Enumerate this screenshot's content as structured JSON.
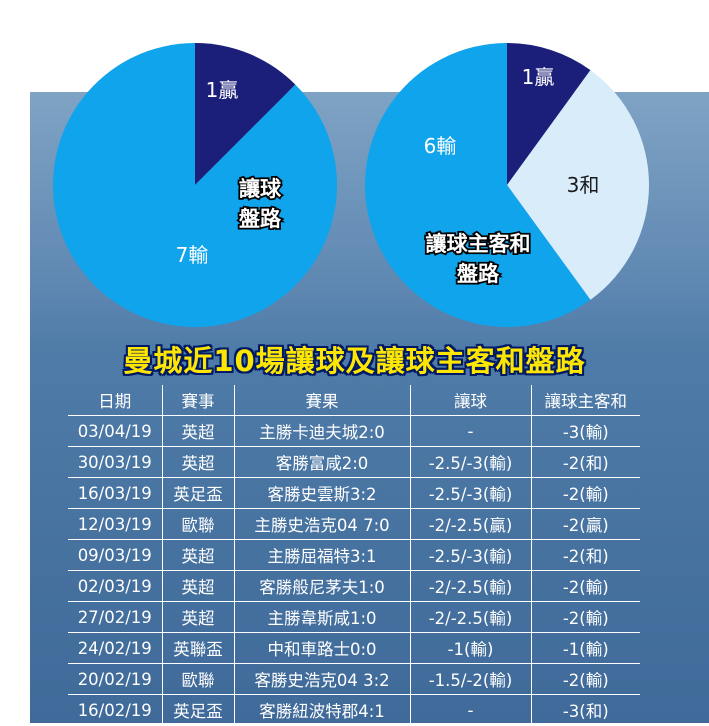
{
  "chart_data": [
    {
      "type": "pie",
      "title": "讓球盤路",
      "slices": [
        {
          "label": "1贏",
          "value": 1,
          "color": "#1c1f7a"
        },
        {
          "label": "7輸",
          "value": 7,
          "color": "#0fa4ec"
        }
      ]
    },
    {
      "type": "pie",
      "title": "讓球主客和盤路",
      "slices": [
        {
          "label": "1贏",
          "value": 1,
          "color": "#1c1f7a"
        },
        {
          "label": "3和",
          "value": 3,
          "color": "#d8ecfa"
        },
        {
          "label": "6輸",
          "value": 6,
          "color": "#0fa4ec"
        }
      ]
    },
    {
      "type": "table",
      "title": "曼城近10場讓球及讓球主客和盤路",
      "columns": [
        "日期",
        "賽事",
        "賽果",
        "讓球",
        "讓球主客和"
      ],
      "rows": [
        [
          "03/04/19",
          "英超",
          "主勝卡迪夫城2:0",
          "-",
          "-3(輸)"
        ],
        [
          "30/03/19",
          "英超",
          "客勝富咸2:0",
          "-2.5/-3(輸)",
          "-2(和)"
        ],
        [
          "16/03/19",
          "英足盃",
          "客勝史雲斯3:2",
          "-2.5/-3(輸)",
          "-2(輸)"
        ],
        [
          "12/03/19",
          "歐聯",
          "主勝史浩克04 7:0",
          "-2/-2.5(贏)",
          "-2(贏)"
        ],
        [
          "09/03/19",
          "英超",
          "主勝屈福特3:1",
          "-2.5/-3(輸)",
          "-2(和)"
        ],
        [
          "02/03/19",
          "英超",
          "客勝般尼茅夫1:0",
          "-2/-2.5(輸)",
          "-2(輸)"
        ],
        [
          "27/02/19",
          "英超",
          "主勝韋斯咸1:0",
          "-2/-2.5(輸)",
          "-2(輸)"
        ],
        [
          "24/02/19",
          "英聯盃",
          "中和車路士0:0",
          "-1(輸)",
          "-1(輸)"
        ],
        [
          "20/02/19",
          "歐聯",
          "客勝史浩克04 3:2",
          "-1.5/-2(輸)",
          "-2(輸)"
        ],
        [
          "16/02/19",
          "英足盃",
          "客勝紐波特郡4:1",
          "-",
          "-3(和)"
        ]
      ]
    }
  ]
}
